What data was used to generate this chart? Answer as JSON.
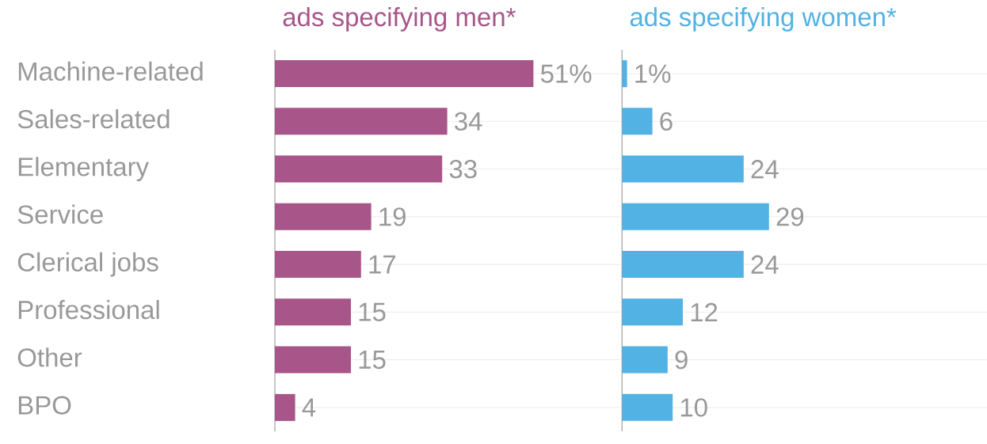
{
  "chart_data": [
    {
      "type": "bar",
      "orientation": "horizontal",
      "title": "ads specifying men*",
      "categories": [
        "Machine-related",
        "Sales-related",
        "Elementary",
        "Service",
        "Clerical jobs",
        "Professional",
        "Other",
        "BPO"
      ],
      "values": [
        51,
        34,
        33,
        19,
        17,
        15,
        15,
        4
      ],
      "value_labels": [
        "51%",
        "34",
        "33",
        "19",
        "17",
        "15",
        "15",
        "4"
      ],
      "color": "#a8568a",
      "xlim": [
        0,
        68
      ],
      "grid": "y"
    },
    {
      "type": "bar",
      "orientation": "horizontal",
      "title": "ads specifying women*",
      "categories": [
        null,
        null,
        null,
        null,
        null,
        null,
        null,
        null
      ],
      "values": [
        1,
        6,
        24,
        29,
        24,
        12,
        9,
        10
      ],
      "value_labels": [
        "1%",
        "6",
        "24",
        "29",
        "24",
        "12",
        "9",
        "10"
      ],
      "color": "#52b2e4",
      "xlim": [
        0,
        72
      ],
      "grid": "y"
    }
  ]
}
